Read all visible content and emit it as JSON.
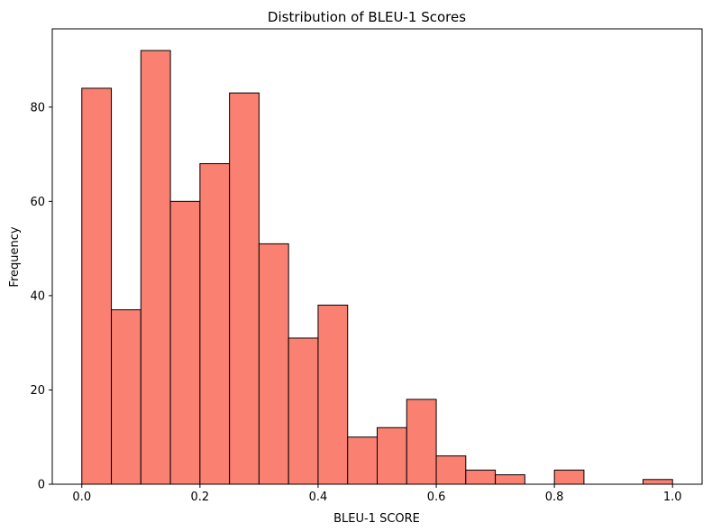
{
  "chart_data": {
    "type": "bar",
    "title": "Distribution of BLEU-1 Scores",
    "xlabel": "BLEU-1 SCORE",
    "ylabel": "Frequency",
    "bin_width": 0.05,
    "bins": [
      {
        "x0": 0.0,
        "x1": 0.05,
        "count": 84
      },
      {
        "x0": 0.05,
        "x1": 0.1,
        "count": 37
      },
      {
        "x0": 0.1,
        "x1": 0.15,
        "count": 92
      },
      {
        "x0": 0.15,
        "x1": 0.2,
        "count": 60
      },
      {
        "x0": 0.2,
        "x1": 0.25,
        "count": 68
      },
      {
        "x0": 0.25,
        "x1": 0.3,
        "count": 83
      },
      {
        "x0": 0.3,
        "x1": 0.35,
        "count": 51
      },
      {
        "x0": 0.35,
        "x1": 0.4,
        "count": 31
      },
      {
        "x0": 0.4,
        "x1": 0.45,
        "count": 38
      },
      {
        "x0": 0.45,
        "x1": 0.5,
        "count": 10
      },
      {
        "x0": 0.5,
        "x1": 0.55,
        "count": 12
      },
      {
        "x0": 0.55,
        "x1": 0.6,
        "count": 18
      },
      {
        "x0": 0.6,
        "x1": 0.65,
        "count": 6
      },
      {
        "x0": 0.65,
        "x1": 0.7,
        "count": 3
      },
      {
        "x0": 0.7,
        "x1": 0.75,
        "count": 2
      },
      {
        "x0": 0.75,
        "x1": 0.8,
        "count": 0
      },
      {
        "x0": 0.8,
        "x1": 0.85,
        "count": 3
      },
      {
        "x0": 0.85,
        "x1": 0.9,
        "count": 0
      },
      {
        "x0": 0.9,
        "x1": 0.95,
        "count": 0
      },
      {
        "x0": 0.95,
        "x1": 1.0,
        "count": 1
      }
    ],
    "xlim": [
      -0.05,
      1.05
    ],
    "ylim": [
      0,
      96.6
    ],
    "xticks": [
      0.0,
      0.2,
      0.4,
      0.6,
      0.8,
      1.0
    ],
    "xtick_labels": [
      "0.0",
      "0.2",
      "0.4",
      "0.6",
      "0.8",
      "1.0"
    ],
    "yticks": [
      0,
      20,
      40,
      60,
      80
    ],
    "ytick_labels": [
      "0",
      "20",
      "40",
      "60",
      "80"
    ],
    "grid": false,
    "colors": {
      "bar_fill": "#fa8072",
      "bar_edge": "#000000"
    }
  }
}
